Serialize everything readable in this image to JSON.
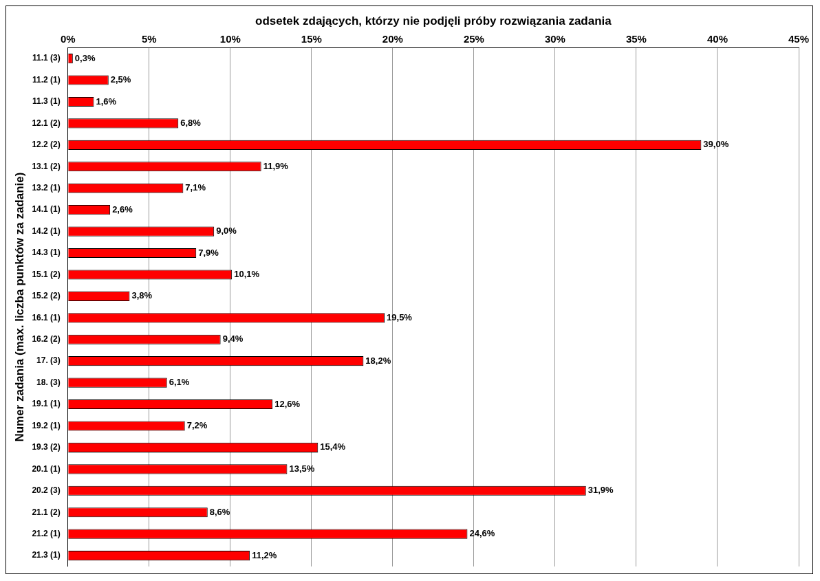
{
  "chart_data": {
    "type": "bar",
    "orientation": "horizontal",
    "xlabel": "odsetek zdających, którzy nie podjęli próby rozwiązania zadania",
    "ylabel": "Numer zadania (max. liczba punktów za zadanie)",
    "categories": [
      "11.1 (3)",
      "11.2 (1)",
      "11.3 (1)",
      "12.1 (2)",
      "12.2 (2)",
      "13.1 (2)",
      "13.2 (1)",
      "14.1 (1)",
      "14.2 (1)",
      "14.3 (1)",
      "15.1 (2)",
      "15.2 (2)",
      "16.1 (1)",
      "16.2 (2)",
      "17. (3)",
      "18. (3)",
      "19.1 (1)",
      "19.2 (1)",
      "19.3 (2)",
      "20.1 (1)",
      "20.2 (3)",
      "21.1 (2)",
      "21.2 (1)",
      "21.3 (1)"
    ],
    "values": [
      0.3,
      2.5,
      1.6,
      6.8,
      39.0,
      11.9,
      7.1,
      2.6,
      9.0,
      7.9,
      10.1,
      3.8,
      19.5,
      9.4,
      18.2,
      6.1,
      12.6,
      7.2,
      15.4,
      13.5,
      31.9,
      8.6,
      24.6,
      11.2
    ],
    "value_labels": [
      "0,3%",
      "2,5%",
      "1,6%",
      "6,8%",
      "39,0%",
      "11,9%",
      "7,1%",
      "2,6%",
      "9,0%",
      "7,9%",
      "10,1%",
      "3,8%",
      "19,5%",
      "9,4%",
      "18,2%",
      "6,1%",
      "12,6%",
      "7,2%",
      "15,4%",
      "13,5%",
      "31,9%",
      "8,6%",
      "24,6%",
      "11,2%"
    ],
    "color": "#ff0000",
    "xlim": [
      0,
      45
    ],
    "xticks": [
      {
        "value": 0,
        "label": "0%"
      },
      {
        "value": 5,
        "label": "5%"
      },
      {
        "value": 10,
        "label": "10%"
      },
      {
        "value": 15,
        "label": "15%"
      },
      {
        "value": 20,
        "label": "20%"
      },
      {
        "value": 25,
        "label": "25%"
      },
      {
        "value": 30,
        "label": "30%"
      },
      {
        "value": 35,
        "label": "35%"
      },
      {
        "value": 40,
        "label": "40%"
      },
      {
        "value": 45,
        "label": "45%"
      }
    ],
    "grid": "x",
    "legend": false
  }
}
